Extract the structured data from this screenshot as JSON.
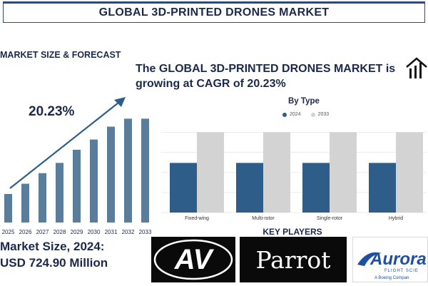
{
  "header": {
    "title": "GLOBAL 3D-PRINTED DRONES MARKET"
  },
  "left_panel": {
    "section_title": "MARKET SIZE & FORECAST",
    "cagr": "20.23%",
    "market_size_line1": "Market Size, 2024:",
    "market_size_line2": "USD 724.90 Million"
  },
  "headline": "The GLOBAL 3D-PRINTED DRONES MARKET is growing at CAGR of 20.23%",
  "key_players": {
    "title": "KEY PLAYERS",
    "logos": [
      {
        "text": "AV",
        "icon": "av-logo"
      },
      {
        "text": "Parrot",
        "icon": "parrot-logo"
      },
      {
        "text": "Aurora",
        "sub1": "FLIGHT SCIE",
        "sub2": "A Boeing Compan",
        "icon": "aurora-logo"
      }
    ]
  },
  "colors": {
    "bar_dark": "#2e5d8a",
    "bar_light": "#d3d3d3",
    "forecast_bar": "#5b7d9c",
    "title": "#1b2a4a"
  },
  "chart_data": [
    {
      "type": "bar",
      "categories": [
        "2025",
        "2026",
        "2027",
        "2028",
        "2029",
        "2030",
        "2031",
        "2032",
        "2033"
      ],
      "values": [
        1.0,
        1.36,
        1.73,
        2.09,
        2.55,
        2.91,
        3.36,
        3.64,
        3.64
      ],
      "title": "",
      "xlabel": "",
      "ylabel": "",
      "annotation": "20.23%",
      "grid": false
    },
    {
      "type": "bar",
      "title": "By Type",
      "categories": [
        "Fixed-wing",
        "Multi-rotor",
        "Single-rotor",
        "Hybrid"
      ],
      "series": [
        {
          "name": "2024",
          "values": [
            60,
            60,
            60,
            60
          ]
        },
        {
          "name": "2033",
          "values": [
            97,
            97,
            97,
            97
          ]
        }
      ],
      "ylim": [
        0,
        100
      ],
      "grid": true,
      "legend": "top"
    }
  ]
}
